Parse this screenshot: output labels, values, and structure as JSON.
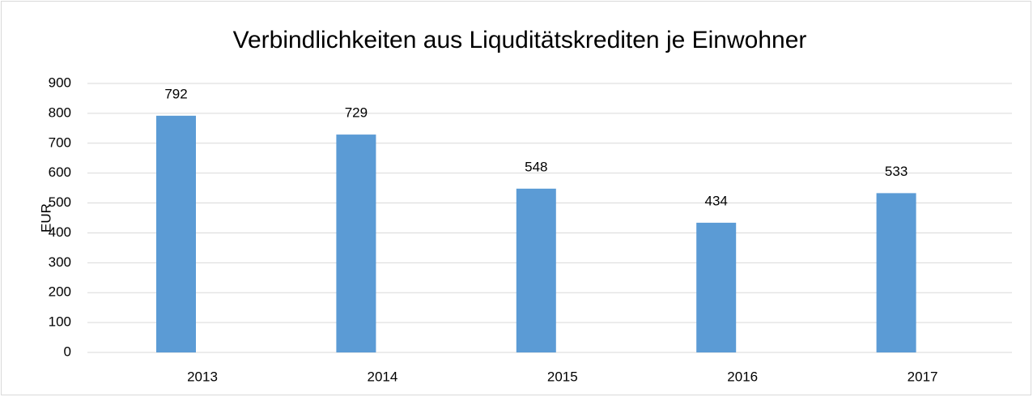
{
  "chart_data": {
    "type": "bar",
    "title": "Verbindlichkeiten aus Liquditätskrediten je Einwohner",
    "y_label": "EUR",
    "categories": [
      "2013",
      "2014",
      "2015",
      "2016",
      "2017"
    ],
    "values": [
      792,
      729,
      548,
      434,
      533
    ],
    "color": "#5b9bd5",
    "ylim": [
      0,
      900
    ],
    "yticks": [
      0,
      100,
      200,
      300,
      400,
      500,
      600,
      700,
      800,
      900
    ],
    "grid": true
  }
}
